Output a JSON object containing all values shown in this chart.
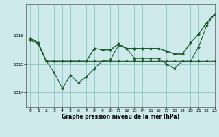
{
  "title": "Graphe pression niveau de la mer (hPa)",
  "background_color": "#ceeaea",
  "grid_color": "#7bbfbf",
  "line_color": "#1a5c2a",
  "marker_color": "#1a5c2a",
  "xlim": [
    -0.5,
    23
  ],
  "ylim": [
    1013.5,
    1017.1
  ],
  "yticks": [
    1014,
    1015,
    1016
  ],
  "xticks": [
    0,
    1,
    2,
    3,
    4,
    5,
    6,
    7,
    8,
    9,
    10,
    11,
    12,
    13,
    14,
    15,
    16,
    17,
    18,
    19,
    20,
    21,
    22,
    23
  ],
  "series1_x": [
    0,
    1,
    2,
    3,
    4,
    5,
    6,
    7,
    8,
    9,
    10,
    11,
    12,
    13,
    14,
    15,
    16,
    17,
    18,
    19,
    20,
    21,
    22,
    23
  ],
  "series1_y": [
    1015.85,
    1015.7,
    1015.1,
    1015.1,
    1015.1,
    1015.1,
    1015.1,
    1015.1,
    1015.1,
    1015.1,
    1015.1,
    1015.1,
    1015.1,
    1015.1,
    1015.1,
    1015.1,
    1015.1,
    1015.1,
    1015.1,
    1015.1,
    1015.1,
    1015.1,
    1015.1,
    1015.1
  ],
  "series2_x": [
    0,
    1,
    2,
    3,
    4,
    5,
    6,
    7,
    8,
    9,
    10,
    11,
    12,
    13,
    14,
    15,
    16,
    17,
    18,
    19,
    20,
    21,
    22,
    23
  ],
  "series2_y": [
    1015.85,
    1015.7,
    1015.1,
    1015.1,
    1015.1,
    1015.1,
    1015.1,
    1015.1,
    1015.55,
    1015.5,
    1015.5,
    1015.7,
    1015.55,
    1015.55,
    1015.55,
    1015.55,
    1015.55,
    1015.45,
    1015.35,
    1015.35,
    1015.75,
    1016.05,
    1016.45,
    1016.75
  ],
  "series3_x": [
    0,
    1,
    2,
    3,
    4,
    5,
    6,
    7,
    8,
    9,
    10,
    11,
    12,
    13,
    14,
    15,
    16,
    17,
    18,
    19,
    20,
    21,
    22,
    23
  ],
  "series3_y": [
    1015.9,
    1015.75,
    1015.1,
    1014.7,
    1014.15,
    1014.6,
    1014.35,
    1014.55,
    1014.85,
    1015.1,
    1015.15,
    1015.65,
    1015.55,
    1015.2,
    1015.2,
    1015.2,
    1015.2,
    1015.0,
    1014.85,
    1015.1,
    1015.1,
    1015.6,
    1016.35,
    1016.75
  ],
  "series4_x": [
    0,
    1,
    2,
    3,
    4,
    5,
    6,
    7,
    8,
    9,
    10,
    11,
    12,
    13,
    14,
    15,
    16,
    17,
    18,
    19,
    20,
    21,
    22,
    23
  ],
  "series4_y": [
    1015.9,
    1015.75,
    1015.1,
    1015.1,
    1015.1,
    1015.1,
    1015.1,
    1015.1,
    1015.55,
    1015.5,
    1015.5,
    1015.7,
    1015.55,
    1015.55,
    1015.55,
    1015.55,
    1015.55,
    1015.45,
    1015.35,
    1015.35,
    1015.75,
    1016.05,
    1016.45,
    1016.75
  ]
}
